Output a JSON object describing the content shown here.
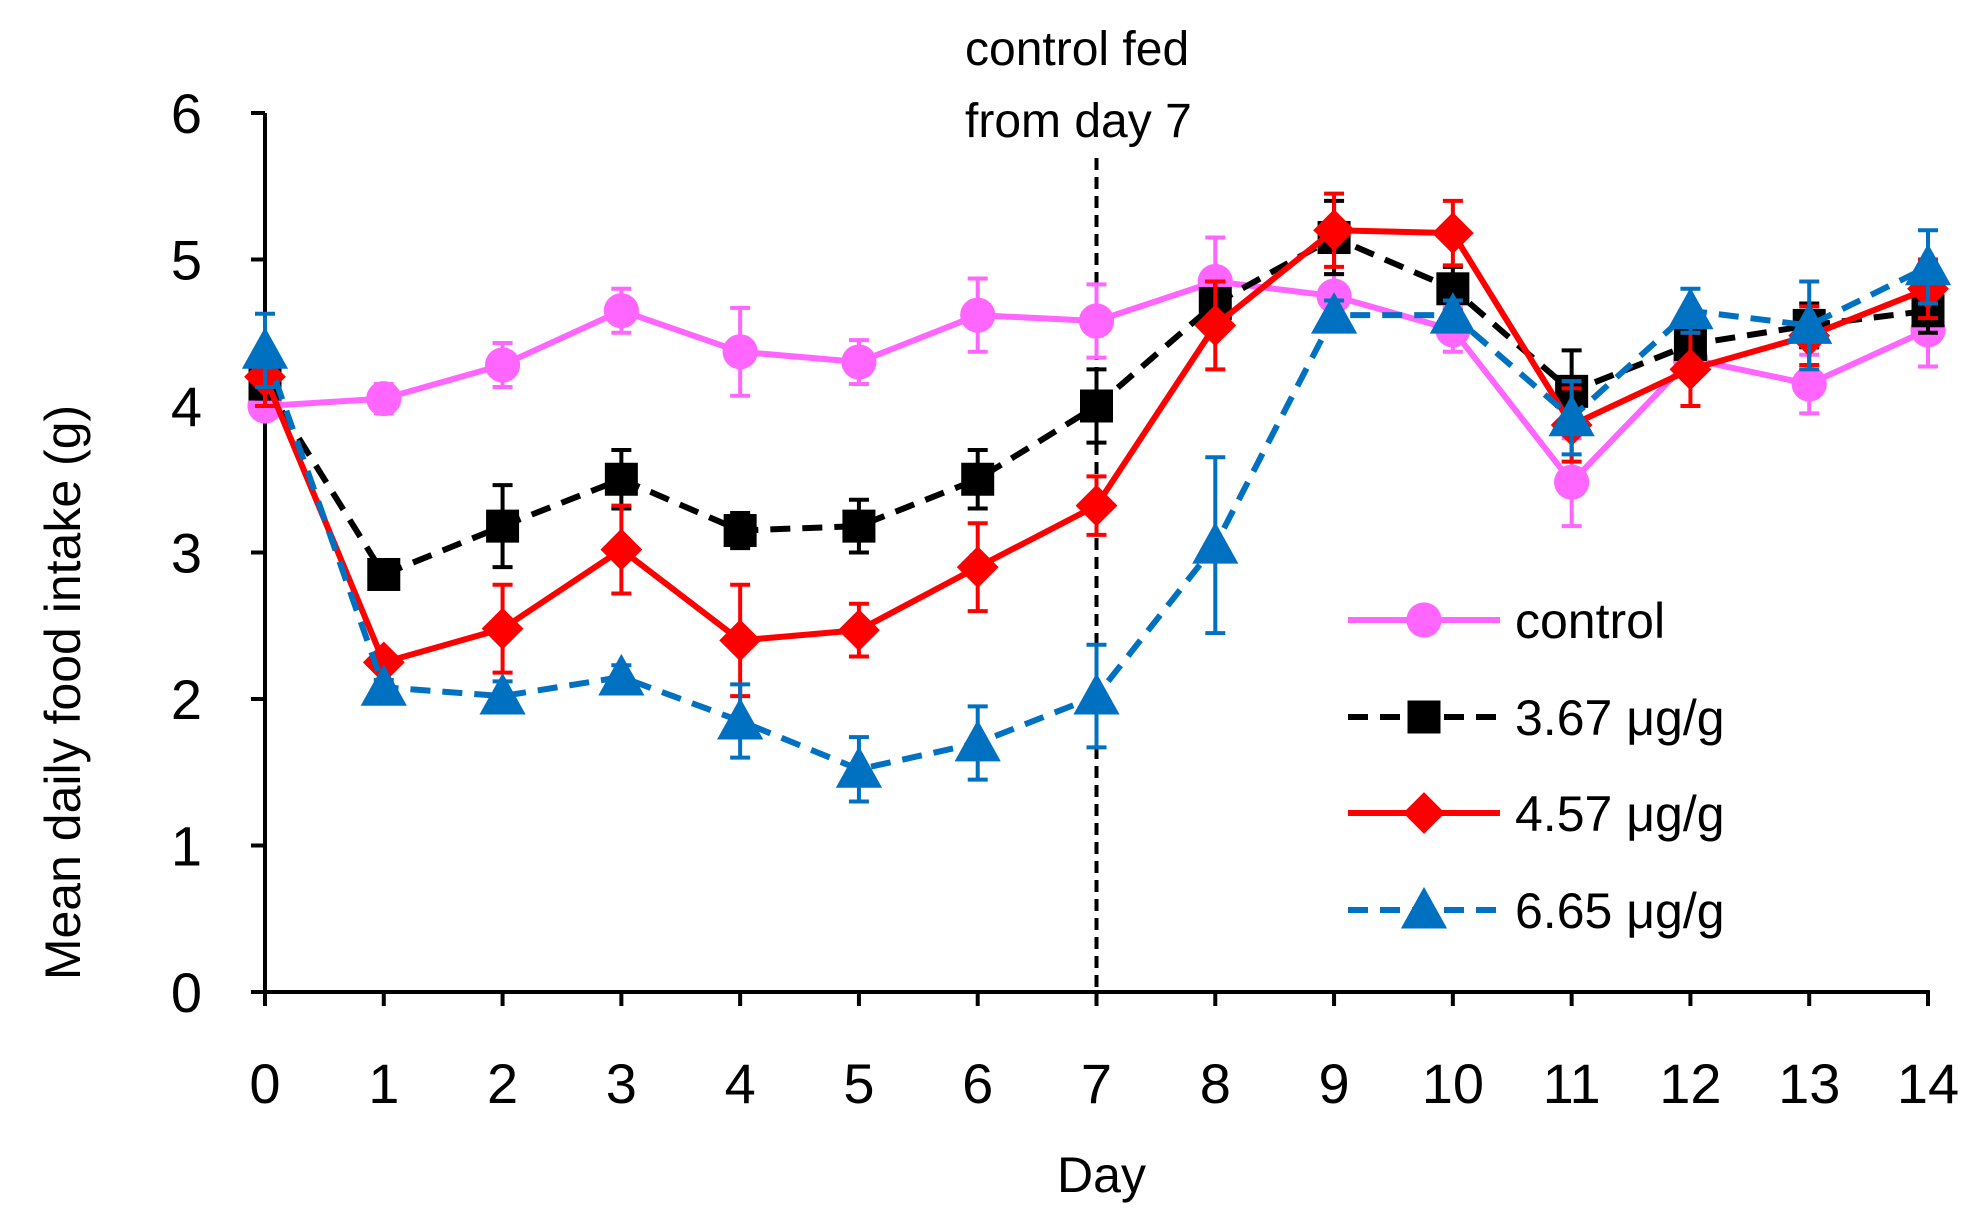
{
  "chart_data": {
    "type": "line",
    "title": "",
    "xlabel": "Day",
    "ylabel": "Mean daily food intake (g)",
    "xlim": [
      0,
      14
    ],
    "ylim": [
      0,
      6
    ],
    "x_ticks": [
      0,
      1,
      2,
      3,
      4,
      5,
      6,
      7,
      8,
      9,
      10,
      11,
      12,
      13,
      14
    ],
    "y_ticks": [
      0,
      1,
      2,
      3,
      4,
      5,
      6
    ],
    "grid": false,
    "legend_position": "right",
    "annotation": {
      "lines": [
        "control fed",
        "from day 7"
      ],
      "x": 7,
      "style": "dashed vertical line"
    },
    "series": [
      {
        "name": "control",
        "color": "#FF66FF",
        "line_style": "solid",
        "marker": "circle",
        "x": [
          0,
          1,
          2,
          3,
          4,
          5,
          6,
          7,
          8,
          9,
          10,
          11,
          12,
          13,
          14
        ],
        "values": [
          4.0,
          4.05,
          4.28,
          4.65,
          4.37,
          4.3,
          4.62,
          4.58,
          4.85,
          4.75,
          4.52,
          3.48,
          4.32,
          4.15,
          4.52
        ],
        "errors": [
          0.05,
          0.1,
          0.15,
          0.15,
          0.3,
          0.15,
          0.25,
          0.25,
          0.3,
          0.15,
          0.15,
          0.3,
          0.1,
          0.2,
          0.25
        ]
      },
      {
        "name": "3.67 μg/g",
        "color": "#000000",
        "line_style": "dashed",
        "marker": "square",
        "x": [
          0,
          1,
          2,
          3,
          4,
          5,
          6,
          7,
          8,
          9,
          10,
          11,
          12,
          13,
          14
        ],
        "values": [
          4.15,
          2.85,
          3.18,
          3.5,
          3.15,
          3.18,
          3.5,
          4.0,
          4.7,
          5.15,
          4.8,
          4.1,
          4.42,
          4.55,
          4.65
        ],
        "errors": [
          0.1,
          0.08,
          0.28,
          0.2,
          0.12,
          0.18,
          0.2,
          0.25,
          0.15,
          0.25,
          0.15,
          0.28,
          0.15,
          0.15,
          0.15
        ]
      },
      {
        "name": "4.57 μg/g",
        "color": "#FF0000",
        "line_style": "solid",
        "marker": "diamond",
        "x": [
          0,
          1,
          2,
          3,
          4,
          5,
          6,
          7,
          8,
          9,
          10,
          11,
          12,
          13,
          14
        ],
        "values": [
          4.2,
          2.25,
          2.48,
          3.02,
          2.4,
          2.47,
          2.9,
          3.32,
          4.55,
          5.2,
          5.18,
          3.87,
          4.25,
          4.48,
          4.8
        ],
        "errors": [
          0.2,
          0.05,
          0.3,
          0.3,
          0.38,
          0.18,
          0.3,
          0.2,
          0.3,
          0.25,
          0.22,
          0.25,
          0.25,
          0.2,
          0.2
        ]
      },
      {
        "name": "6.65 μg/g",
        "color": "#0070C0",
        "line_style": "dashed",
        "marker": "triangle",
        "x": [
          0,
          1,
          2,
          3,
          4,
          5,
          6,
          7,
          8,
          9,
          10,
          11,
          12,
          13,
          14
        ],
        "values": [
          4.38,
          2.08,
          2.02,
          2.15,
          1.85,
          1.52,
          1.7,
          2.02,
          3.05,
          4.62,
          4.62,
          3.92,
          4.65,
          4.55,
          4.95
        ],
        "errors": [
          0.25,
          0.05,
          0.1,
          0.08,
          0.25,
          0.22,
          0.25,
          0.35,
          0.6,
          0.1,
          0.1,
          0.25,
          0.15,
          0.3,
          0.25
        ]
      }
    ]
  }
}
